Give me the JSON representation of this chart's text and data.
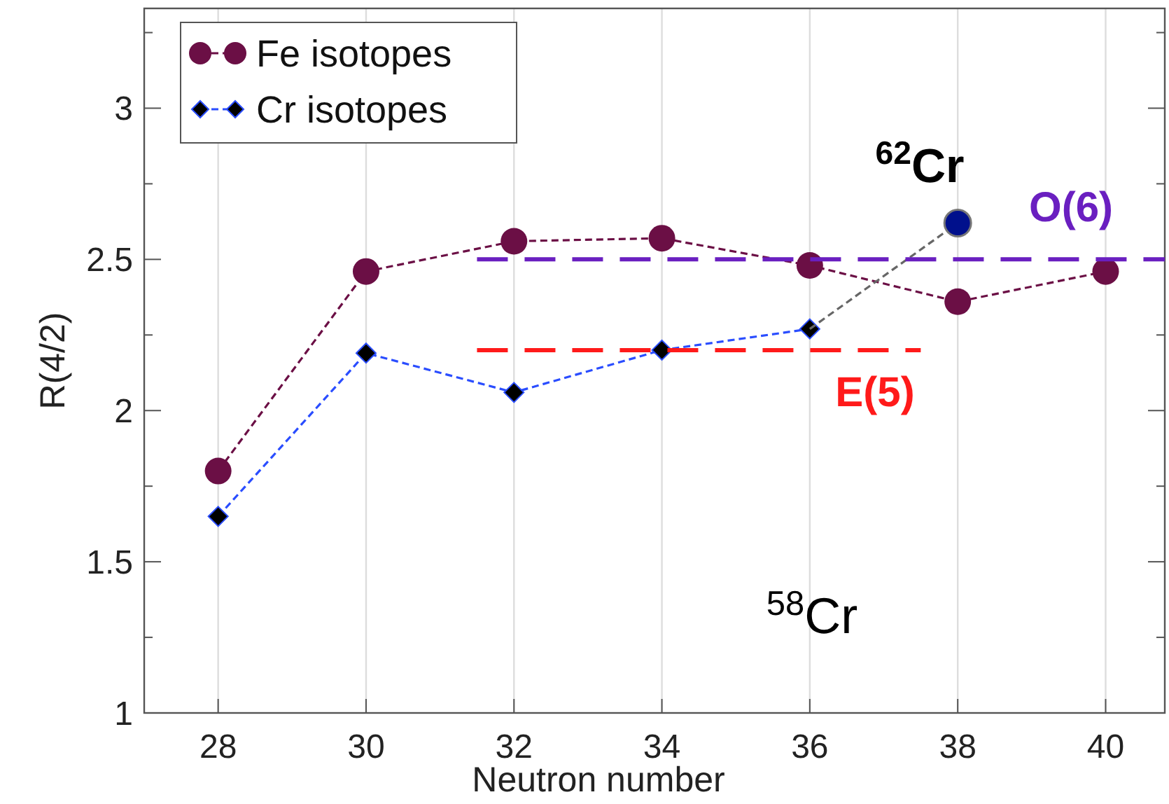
{
  "chart_data": {
    "type": "line",
    "xlabel": "Neutron number",
    "ylabel": "R(4/2)",
    "xlim": [
      27,
      40.8
    ],
    "xticks": [
      28,
      30,
      32,
      34,
      36,
      38,
      40
    ],
    "ylim": [
      1,
      3.33
    ],
    "yticks": [
      1,
      {
        "value": 1.25,
        "label": null
      },
      1.5,
      {
        "value": 1.75,
        "label": null
      },
      2,
      {
        "value": 2.25,
        "label": null
      },
      2.5,
      {
        "value": 2.75,
        "label": null
      },
      3,
      {
        "value": 3.25,
        "label": null
      }
    ],
    "grid": "x",
    "legend": "top left",
    "line_style": "dashed",
    "series": [
      {
        "name": "Fe isotopes",
        "color": "#6b0f45",
        "marker": "circle",
        "x": [
          28,
          30,
          32,
          34,
          36,
          38,
          40
        ],
        "values": [
          1.8,
          2.46,
          2.56,
          2.57,
          2.48,
          2.36,
          2.46
        ]
      },
      {
        "name": "Cr isotopes",
        "color": "#2a4dff",
        "marker": "diamond",
        "x": [
          28,
          30,
          32,
          34,
          36
        ],
        "values": [
          1.65,
          2.19,
          2.06,
          2.2,
          2.27
        ]
      },
      {
        "color": "#666666",
        "marker": "none",
        "x": [
          36,
          38
        ],
        "values": [
          2.27,
          2.62
        ]
      },
      {
        "type": "scatter",
        "color": "#00108c",
        "marker": "circle",
        "x": [
          38
        ],
        "values": [
          2.62
        ]
      },
      {
        "color": "#6a1fc0",
        "marker": "none",
        "x": [
          31.5,
          40.8
        ],
        "values": [
          2.5,
          2.5
        ]
      },
      {
        "color": "#ff1a1a",
        "marker": "none",
        "x": [
          31.5,
          37.5
        ],
        "values": [
          2.2,
          2.2
        ]
      }
    ],
    "annotations": [
      "$^{62}$Cr",
      "O(6)",
      "E(5)",
      "$^{58}$Cr"
    ]
  }
}
